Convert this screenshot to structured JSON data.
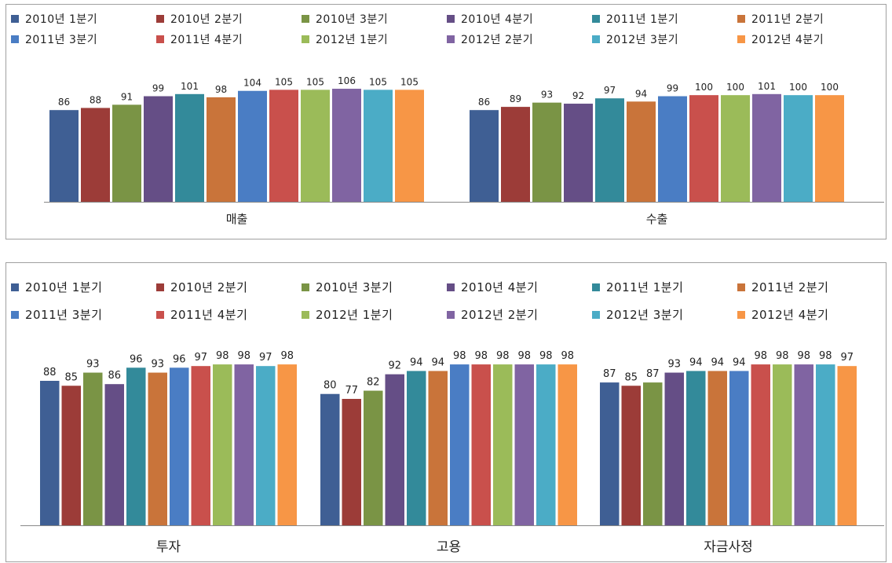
{
  "chart_data": [
    {
      "type": "bar",
      "legend_position": "top",
      "ylim": [
        0,
        120
      ],
      "categories": [
        "매출",
        "수출"
      ],
      "series": [
        {
          "name": "2010년 1분기",
          "color": "#3F5F94",
          "values": [
            86,
            86
          ]
        },
        {
          "name": "2010년 2분기",
          "color": "#9C3C38",
          "values": [
            88,
            89
          ]
        },
        {
          "name": "2010년 3분기",
          "color": "#7A9445",
          "values": [
            91,
            93
          ]
        },
        {
          "name": "2010년 4분기",
          "color": "#654E86",
          "values": [
            99,
            92
          ]
        },
        {
          "name": "2011년 1분기",
          "color": "#338A9A",
          "values": [
            101,
            97
          ]
        },
        {
          "name": "2011년 2분기",
          "color": "#C9743A",
          "values": [
            98,
            94
          ]
        },
        {
          "name": "2011년 3분기",
          "color": "#4A7DC4",
          "values": [
            104,
            99
          ]
        },
        {
          "name": "2011년 4분기",
          "color": "#C9504C",
          "values": [
            105,
            100
          ]
        },
        {
          "name": "2012년 1분기",
          "color": "#9BBB59",
          "values": [
            105,
            100
          ]
        },
        {
          "name": "2012년 2분기",
          "color": "#8064A2",
          "values": [
            106,
            101
          ]
        },
        {
          "name": "2012년 3분기",
          "color": "#4BACC6",
          "values": [
            105,
            100
          ]
        },
        {
          "name": "2012년 4분기",
          "color": "#F79646",
          "values": [
            105,
            100
          ]
        }
      ]
    },
    {
      "type": "bar",
      "legend_position": "top",
      "ylim": [
        0,
        110
      ],
      "categories": [
        "투자",
        "고용",
        "자금사정"
      ],
      "series": [
        {
          "name": "2010년 1분기",
          "color": "#3F5F94",
          "values": [
            88,
            80,
            87
          ]
        },
        {
          "name": "2010년 2분기",
          "color": "#9C3C38",
          "values": [
            85,
            77,
            85
          ]
        },
        {
          "name": "2010년 3분기",
          "color": "#7A9445",
          "values": [
            93,
            82,
            87
          ]
        },
        {
          "name": "2010년 4분기",
          "color": "#654E86",
          "values": [
            86,
            92,
            93
          ]
        },
        {
          "name": "2011년 1분기",
          "color": "#338A9A",
          "values": [
            96,
            94,
            94
          ]
        },
        {
          "name": "2011년 2분기",
          "color": "#C9743A",
          "values": [
            93,
            94,
            94
          ]
        },
        {
          "name": "2011년 3분기",
          "color": "#4A7DC4",
          "values": [
            96,
            98,
            94
          ]
        },
        {
          "name": "2011년 4분기",
          "color": "#C9504C",
          "values": [
            97,
            98,
            98
          ]
        },
        {
          "name": "2012년 1분기",
          "color": "#9BBB59",
          "values": [
            98,
            98,
            98
          ]
        },
        {
          "name": "2012년 2분기",
          "color": "#8064A2",
          "values": [
            98,
            98,
            98
          ]
        },
        {
          "name": "2012년 3분기",
          "color": "#4BACC6",
          "values": [
            97,
            98,
            98
          ]
        },
        {
          "name": "2012년 4분기",
          "color": "#F79646",
          "values": [
            98,
            98,
            97
          ]
        }
      ]
    }
  ]
}
